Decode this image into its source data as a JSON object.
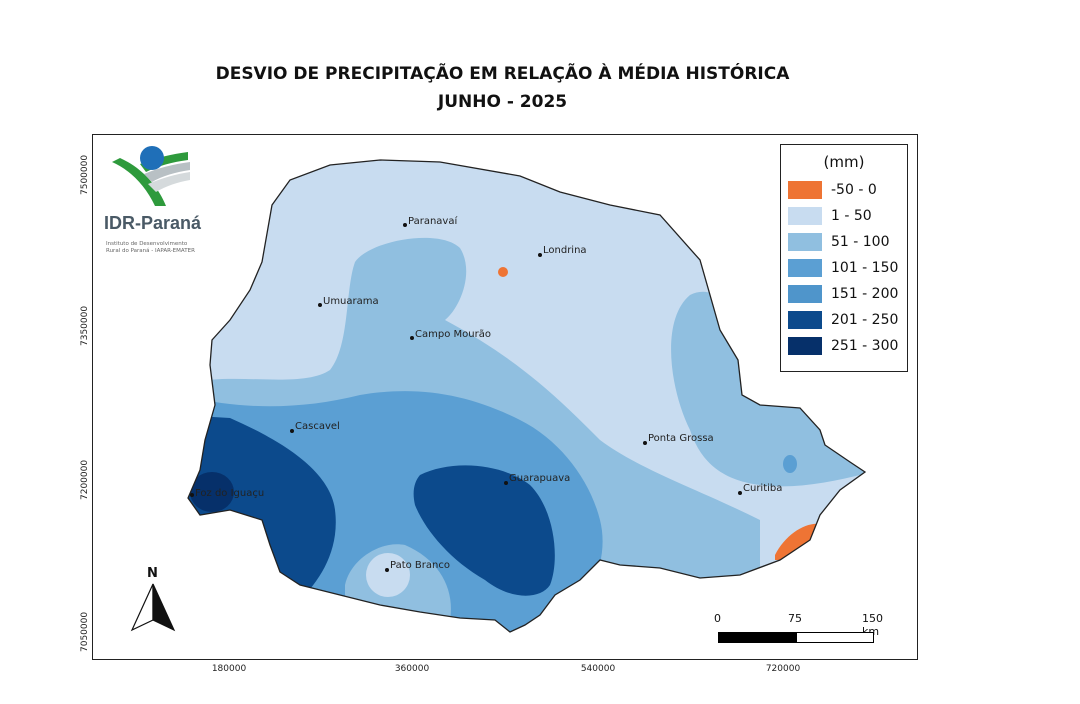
{
  "title": {
    "line1": "DESVIO DE PRECIPITAÇÃO EM RELAÇÃO À MÉDIA HISTÓRICA",
    "line2": "JUNHO - 2025"
  },
  "logo": {
    "name": "IDR-Paraná",
    "subtitle_line1": "Instituto de Desenvolvimento",
    "subtitle_line2": "Rural do Paraná - IAPAR-EMATER"
  },
  "axes": {
    "y_ticks": [
      "7500000",
      "7350000",
      "7200000",
      "7050000"
    ],
    "x_ticks": [
      "180000",
      "360000",
      "540000",
      "720000"
    ]
  },
  "legend": {
    "title": "(mm)",
    "items": [
      {
        "label": "-50 - 0",
        "color": "#ee7434"
      },
      {
        "label": "1 - 50",
        "color": "#c8dcf0"
      },
      {
        "label": "51 - 100",
        "color": "#90bfe0"
      },
      {
        "label": "101 - 150",
        "color": "#5b9fd3"
      },
      {
        "label": "151 - 200",
        "color": "#4f95cb"
      },
      {
        "label": "201 - 250",
        "color": "#0c4a8c"
      },
      {
        "label": "251 - 300",
        "color": "#06306a"
      }
    ]
  },
  "cities": [
    {
      "name": "Paranavaí"
    },
    {
      "name": "Londrina"
    },
    {
      "name": "Umuarama"
    },
    {
      "name": "Campo Mourão"
    },
    {
      "name": "Cascavel"
    },
    {
      "name": "Ponta Grossa"
    },
    {
      "name": "Guarapuava"
    },
    {
      "name": "Curitiba"
    },
    {
      "name": "Foz do Iguaçu"
    },
    {
      "name": "Pato Branco"
    }
  ],
  "scale_bar": {
    "labels": [
      "0",
      "75",
      "150 km"
    ]
  },
  "north_arrow": {
    "label": "N",
    "icon": "north-arrow-icon"
  }
}
